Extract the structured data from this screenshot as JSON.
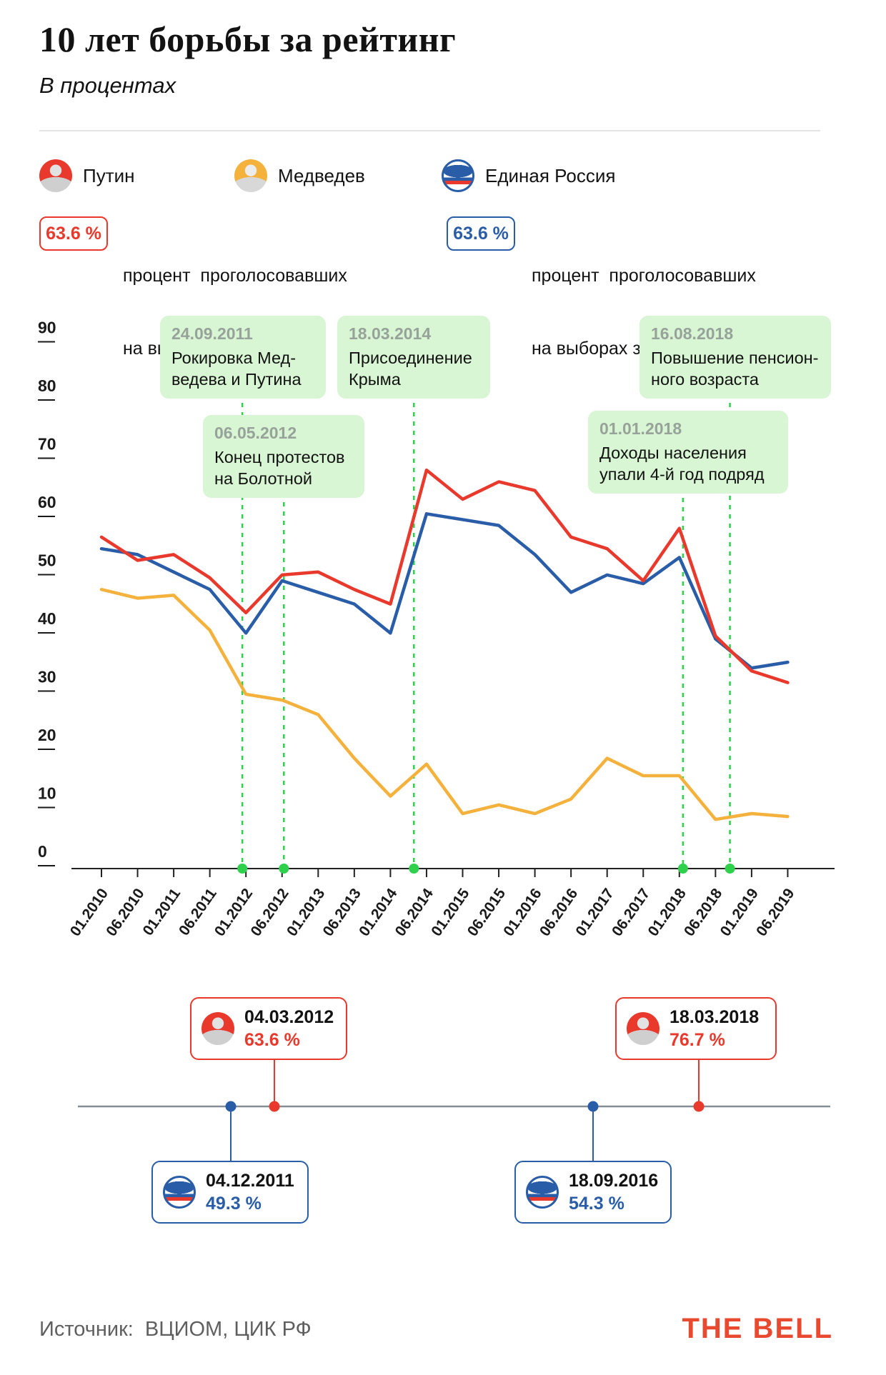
{
  "header": {
    "title": "10 лет борьбы за рейтинг",
    "subtitle": "В процентах"
  },
  "legend": {
    "items": [
      {
        "label": "Путин",
        "icon": "putin-avatar"
      },
      {
        "label": "Медведев",
        "icon": "medvedev-avatar"
      },
      {
        "label": "Единая Россия",
        "icon": "united-russia-logo"
      }
    ]
  },
  "callouts": {
    "putin": {
      "value": "63.6 %",
      "line1": "процент  проголосовавших",
      "line2": "на выборах за Путина"
    },
    "er": {
      "value": "63.6 %",
      "line1": "процент  проголосовавших",
      "line2": "на выборах за Единую Россию"
    }
  },
  "colors": {
    "putin": "#e9392c",
    "medvedev": "#f4b13c",
    "er": "#2a5da8",
    "event_line": "#2fd14c",
    "event_bg": "#d8f6d3",
    "axis": "#1a1a1a",
    "timeline_line": "#878d94"
  },
  "chart_data": {
    "type": "line",
    "title": "10 лет борьбы за рейтинг",
    "unit": "percent",
    "categories": [
      "01.2010",
      "06.2010",
      "01.2011",
      "06.2011",
      "01.2012",
      "06.2012",
      "01.2013",
      "06.2013",
      "01.2014",
      "06.2014",
      "01.2015",
      "06.2015",
      "01.2016",
      "06.2016",
      "01.2017",
      "06.2017",
      "01.2018",
      "06.2018",
      "01.2019",
      "06.2019"
    ],
    "series": [
      {
        "name": "Путин",
        "color": "#e9392c",
        "values": [
          54,
          50,
          51,
          47,
          41,
          47.5,
          48,
          45,
          42.5,
          65.5,
          60.5,
          63.5,
          62,
          54,
          52,
          46.5,
          55.5,
          37,
          31,
          29
        ]
      },
      {
        "name": "Единая Россия",
        "color": "#2a5da8",
        "values": [
          52,
          51,
          48,
          45,
          37.5,
          46.5,
          44.5,
          42.5,
          37.5,
          58,
          57,
          56,
          51,
          44.5,
          47.5,
          46,
          50.5,
          36.5,
          31.5,
          32.5
        ]
      },
      {
        "name": "Медведев",
        "color": "#f4b13c",
        "values": [
          45,
          43.5,
          44,
          38,
          27,
          26,
          23.5,
          16,
          9.5,
          15,
          6.5,
          8,
          6.5,
          9,
          16,
          13,
          13,
          5.5,
          6.5,
          6
        ]
      }
    ],
    "ylim": [
      0,
      90
    ],
    "yticks": [
      0,
      10,
      20,
      30,
      40,
      50,
      60,
      70,
      80,
      90
    ],
    "grid": false,
    "legend_position": "top",
    "annotations": [
      {
        "date": "24.09.2011",
        "line1": "Рокировка Мед-",
        "line2": "ведева и Путина",
        "pos": 3.9
      },
      {
        "date": "06.05.2012",
        "line1": "Конец протестов",
        "line2": "на Болотной",
        "pos": 5.05
      },
      {
        "date": "18.03.2014",
        "line1": "Присоединение",
        "line2": "Крыма",
        "pos": 8.65
      },
      {
        "date": "01.01.2018",
        "line1": "Доходы населения",
        "line2": "упали 4-й год подряд",
        "pos": 16.1
      },
      {
        "date": "16.08.2018",
        "line1": "Повышение пенсион-",
        "line2": "ного возраста",
        "pos": 17.4
      }
    ]
  },
  "timeline": {
    "putin": [
      {
        "date": "04.03.2012",
        "value": "63.6 %"
      },
      {
        "date": "18.03.2018",
        "value": "76.7 %"
      }
    ],
    "er": [
      {
        "date": "04.12.2011",
        "value": "49.3 %"
      },
      {
        "date": "18.09.2016",
        "value": "54.3 %"
      }
    ]
  },
  "footer": {
    "source_label": "Источник:",
    "source": "ВЦИОМ, ЦИК РФ",
    "logo": "THE BELL"
  }
}
